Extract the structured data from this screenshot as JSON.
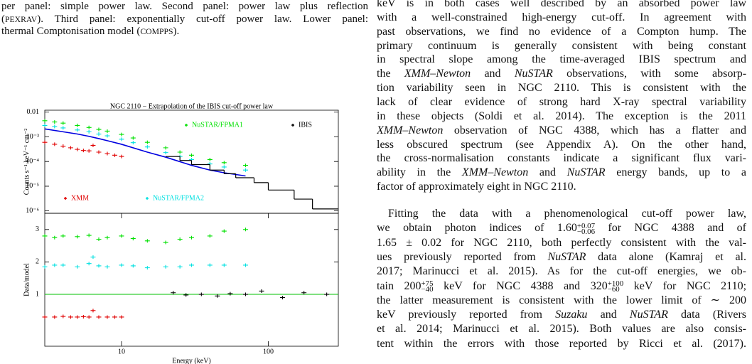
{
  "caption": {
    "lines": [
      [
        "per panel: simple power law. Second panel: power law plus reflection"
      ],
      [
        "(",
        {
          "sc": "PEXRAV"
        },
        "). Third panel: exponentially cut-off power law. Lower panel:"
      ],
      [
        "thermal Comptonisation model (",
        {
          "sc": "COMPPS"
        },
        ")."
      ]
    ]
  },
  "body": {
    "paragraphs": [
      [
        [
          "keV is in both cases well described by an absorbed power law"
        ],
        [
          "with a well-constrained high-energy cut-off. In agreement with"
        ],
        [
          "past observations, we find no evidence of a Compton hump. The"
        ],
        [
          "primary continuum is generally consistent with being constant"
        ],
        [
          "in spectral slope among the time-averaged IBIS spectrum and"
        ],
        [
          "the ",
          {
            "i": "XMM–Newton"
          },
          " and ",
          {
            "i": "NuSTAR"
          },
          " observations, with some absorp-"
        ],
        [
          "tion variability seen in NGC 2110. This is consistent with the"
        ],
        [
          "lack of clear evidence of strong hard X-ray spectral variability"
        ],
        [
          "in these objects (Soldi et al. 2014). The exception is the 2011"
        ],
        [
          {
            "i": "XMM–Newton"
          },
          " observation of NGC 4388, which has a flatter and"
        ],
        [
          "less obscured spectrum (see Appendix A). On the other hand,"
        ],
        [
          "the cross-normalisation constants indicate a significant flux vari-"
        ],
        [
          "ability in the ",
          {
            "i": "XMM–Newton"
          },
          " and ",
          {
            "i": "NuSTAR"
          },
          " energy bands, up to a"
        ],
        [
          "factor of approximately eight in NGC 2110."
        ]
      ],
      [
        [
          "Fitting the data with a phenomenological cut-off power law,"
        ],
        [
          "we obtain photon indices of 1.60",
          {
            "sup": "+0.07",
            "sub": "−0.06"
          },
          " for NGC 4388 and of"
        ],
        [
          "1.65 ± 0.02 for NGC 2110, both perfectly consistent with the val-"
        ],
        [
          "ues previously reported from ",
          {
            "i": "NuSTAR"
          },
          " data alone (Kamraj et al."
        ],
        [
          "2017; Marinucci et al. 2015). As for the cut-off energies, we ob-"
        ],
        [
          "tain 200",
          {
            "sup": "+75",
            "sub": "−40"
          },
          " keV for NGC 4388 and 320",
          {
            "sup": "+100",
            "sub": "−60"
          },
          " keV for NGC 2110;"
        ],
        [
          "the latter measurement is consistent with the lower limit of ∼ 200"
        ],
        [
          "keV previously reported from ",
          {
            "i": "Suzaku"
          },
          " and ",
          {
            "i": "NuSTAR"
          },
          " data (Rivers"
        ],
        [
          "et al. 2014; Marinucci et al. 2015). Both values are also consis-"
        ],
        [
          "tent within the errors with those reported by Ricci et al. (2017)."
        ]
      ]
    ]
  },
  "chart_data": [
    {
      "type": "scatter",
      "title": "NGC 2110 − Extrapolation of the IBIS cut-off power law",
      "y_label": "Counts s⁻¹ keV⁻¹ cm⁻²",
      "xlog": true,
      "ylog": true,
      "xlim": [
        3,
        300
      ],
      "ylim": [
        8e-07,
        0.012
      ],
      "yticks": [
        0.01,
        {
          "value": 0.001,
          "label": "10⁻³"
        },
        {
          "value": 0.0001,
          "label": "10⁻⁴"
        },
        {
          "value": 1e-05,
          "label": "10⁻⁵"
        },
        {
          "value": 1e-06,
          "label": "10⁻⁶"
        }
      ],
      "series": [
        {
          "name": "NuSTAR/FPMA1",
          "color": "#00e000",
          "style": "points",
          "x": [
            3,
            3.5,
            4,
            5,
            6,
            7,
            8,
            10,
            12,
            15,
            20,
            25,
            30,
            40,
            50,
            70
          ],
          "values": [
            0.0045,
            0.004,
            0.0036,
            0.0029,
            0.0024,
            0.002,
            0.0017,
            0.00125,
            0.0009,
            0.0006,
            0.00036,
            0.00024,
            0.00018,
            0.00012,
            9e-05,
            7e-05
          ]
        },
        {
          "name": "NuSTAR/FPMA2",
          "color": "#00e0e0",
          "style": "points",
          "x": [
            3,
            3.5,
            4,
            5,
            6,
            7,
            8,
            10,
            12,
            15,
            20,
            25,
            30,
            40,
            50,
            70
          ],
          "values": [
            0.0029,
            0.0026,
            0.0023,
            0.0019,
            0.0016,
            0.0013,
            0.0011,
            0.0008,
            0.00058,
            0.00039,
            0.00023,
            0.00016,
            0.00012,
            8e-05,
            6e-05,
            4.5e-05
          ]
        },
        {
          "color": "#0000e0",
          "style": "line",
          "x": [
            3,
            4,
            5,
            6,
            7,
            8,
            10,
            15,
            20,
            30,
            40,
            50,
            70
          ],
          "values": [
            0.0021,
            0.0016,
            0.0013,
            0.00105,
            0.00085,
            0.0007,
            0.0005,
            0.00024,
            0.00015,
            7e-05,
            4.5e-05,
            3.5e-05,
            2.6e-05
          ]
        },
        {
          "name": "XMM",
          "color": "#e00000",
          "style": "points",
          "x": [
            3,
            3.5,
            4,
            4.5,
            5,
            5.5,
            6,
            6.4,
            7,
            8,
            9,
            10
          ],
          "values": [
            0.0006,
            0.0005,
            0.00042,
            0.00036,
            0.00031,
            0.00028,
            0.00027,
            0.00045,
            0.00024,
            0.00021,
            0.00018,
            0.00016
          ]
        },
        {
          "name": "IBIS",
          "color": "#000000",
          "style": "step",
          "bins": [
            20,
            25,
            30,
            40,
            50,
            60,
            80,
            100,
            150,
            200,
            300
          ],
          "values": [
            0.00016,
            0.00011,
            7.5e-05,
            4.5e-05,
            3.2e-05,
            2.2e-05,
            1.4e-05,
            7e-06,
            3e-06,
            1.2e-06
          ]
        }
      ]
    },
    {
      "type": "scatter",
      "x_label": "Energy (keV)",
      "y_label": "Data/model",
      "xlog": true,
      "xlim": [
        3,
        300
      ],
      "xticks": [
        10,
        100
      ],
      "ylim": [
        -0.6,
        3.5
      ],
      "yticks": [
        1,
        2,
        3
      ],
      "reference_line": {
        "value": 1,
        "color": "#00c000"
      },
      "series": [
        {
          "color": "#00e000",
          "style": "points",
          "x": [
            3,
            3.5,
            4,
            5,
            6,
            7,
            8,
            10,
            12,
            15,
            20,
            25,
            30,
            40,
            50,
            70
          ],
          "values": [
            2.8,
            2.75,
            2.8,
            2.78,
            2.82,
            2.7,
            2.75,
            2.8,
            2.72,
            2.65,
            2.6,
            2.7,
            2.75,
            2.8,
            2.95,
            3.0
          ]
        },
        {
          "color": "#00e0e0",
          "style": "points",
          "x": [
            3,
            3.5,
            4,
            5,
            6,
            6.4,
            7,
            8,
            10,
            12,
            15,
            20,
            25,
            30,
            40,
            50,
            70
          ],
          "values": [
            1.85,
            1.9,
            1.9,
            1.85,
            1.95,
            2.15,
            1.88,
            1.85,
            1.9,
            1.88,
            1.82,
            1.85,
            1.85,
            1.9,
            1.9,
            1.9,
            1.9
          ]
        },
        {
          "color": "#e00000",
          "style": "points",
          "x": [
            3,
            3.5,
            4,
            4.5,
            5,
            5.5,
            6,
            6.4,
            7,
            8,
            9,
            10
          ],
          "values": [
            0.3,
            0.3,
            0.32,
            0.3,
            0.3,
            0.31,
            0.3,
            0.5,
            0.3,
            0.3,
            0.3,
            0.3
          ]
        },
        {
          "color": "#000000",
          "style": "points",
          "x": [
            22.5,
            27.5,
            35,
            45,
            55,
            70,
            90,
            125,
            175,
            250
          ],
          "values": [
            1.05,
            0.98,
            1.0,
            0.95,
            1.02,
            1.0,
            1.1,
            0.9,
            1.05,
            1.0
          ]
        }
      ]
    }
  ]
}
